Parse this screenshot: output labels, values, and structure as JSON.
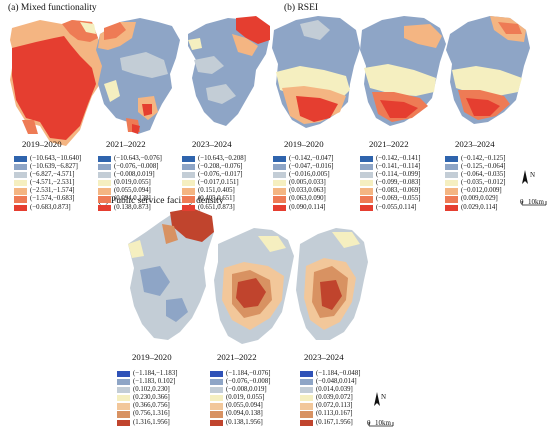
{
  "panel_a": {
    "title": "(a)  Mixed functionality",
    "years": [
      "2019–2020",
      "2021–2022",
      "2023–2024"
    ],
    "legends": [
      {
        "colors": [
          "#2f64ad",
          "#8ea5c6",
          "#c3cdd6",
          "#f5efc0",
          "#f4b582",
          "#ee7b55",
          "#e53e30"
        ],
        "labels": [
          "(−10.643,−10.640]",
          "(−10.639,−6.827]",
          "(−6.827,−4.571]",
          "(−4.571,−2.531]",
          "(−2.531,−1.574]",
          "(−1.574,−0.683]",
          "(−0.683,0.873]"
        ]
      },
      {
        "colors": [
          "#2f64ad",
          "#8ea5c6",
          "#c3cdd6",
          "#f5efc0",
          "#f4b582",
          "#ee7b55",
          "#e53e30"
        ],
        "labels": [
          "(−10.643,−0.076]",
          "(−0.076,−0.008]",
          "(−0.008,0.019]",
          "(0.019,0.055]",
          "(0.055,0.094]",
          "(0.094,0.138]",
          "(0.138,0.873]"
        ]
      },
      {
        "colors": [
          "#2f64ad",
          "#8ea5c6",
          "#c3cdd6",
          "#f5efc0",
          "#f4b582",
          "#ee7b55",
          "#e53e30"
        ],
        "labels": [
          "(−10.643,−0.208]",
          "(−0.208,−0.076]",
          "(−0.076,−0.017]",
          "(−0.017,0.151]",
          "(0.151,0.405]",
          "(0.405,0.651]",
          "(0.651,0.873]"
        ]
      }
    ]
  },
  "panel_b": {
    "title": "(b)   RSEI",
    "years": [
      "2019–2020",
      "2021–2022",
      "2023–2024"
    ],
    "legends": [
      {
        "colors": [
          "#2f64ad",
          "#8ea5c6",
          "#c3cdd6",
          "#f5efc0",
          "#f4b582",
          "#ee7b55",
          "#e53e30"
        ],
        "labels": [
          "(−0.142,−0.047]",
          "(−0.047,−0.016]",
          "(−0.016,0.005]",
          "(0.005,0.033]",
          "(0.033,0.063]",
          "(0.063,0.090]",
          "(0.090,0.114]"
        ]
      },
      {
        "colors": [
          "#2f64ad",
          "#8ea5c6",
          "#c3cdd6",
          "#f5efc0",
          "#f4b582",
          "#ee7b55",
          "#e53e30"
        ],
        "labels": [
          "(−0.142,−0.141]",
          "(−0.141,−0.114]",
          "(−0.114,−0.099]",
          "(−0.099,−0.083]",
          "(−0.083,−0.069]",
          "(−0.069,−0.055]",
          "(−0.055,0.114]"
        ]
      },
      {
        "colors": [
          "#2f64ad",
          "#8ea5c6",
          "#c3cdd6",
          "#f5efc0",
          "#f4b582",
          "#ee7b55",
          "#e53e30"
        ],
        "labels": [
          "(−0.142,−0.125]",
          "(−0.125,−0.064]",
          "(−0.064,−0.035]",
          "(−0.035,−0.012]",
          "(−0.012,0.009]",
          "(0.009,0.029]",
          "(0.029,0.114]"
        ]
      }
    ]
  },
  "panel_c": {
    "title": "(c)   Public service facility density",
    "years": [
      "2019–2020",
      "2021–2022",
      "2023–2024"
    ],
    "legends": [
      {
        "colors": [
          "#2f52b8",
          "#8ea5c6",
          "#c3cdd6",
          "#f5efc0",
          "#f2c79a",
          "#d89262",
          "#c0442d"
        ],
        "labels": [
          "(−1.184,−1.183]",
          "(−1.183, 0.102]",
          "(0.102,0.230]",
          "(0.230,0.366]",
          "(0.366,0.756]",
          "(0.756,1.316]",
          "(1.316,1.956]"
        ]
      },
      {
        "colors": [
          "#2f52b8",
          "#8ea5c6",
          "#c3cdd6",
          "#f5efc0",
          "#f2c79a",
          "#d89262",
          "#c0442d"
        ],
        "labels": [
          "(−1.184,−0.076]",
          "(−0.076,−0.008]",
          "(−0.008,0.019]",
          "(0.019, 0.055]",
          "(0.055,0.094]",
          "(0.094,0.138]",
          "(0.138,1.956]"
        ]
      },
      {
        "colors": [
          "#2f52b8",
          "#8ea5c6",
          "#c3cdd6",
          "#f5efc0",
          "#f2c79a",
          "#d89262",
          "#c0442d"
        ],
        "labels": [
          "(−1.184,−0.048]",
          "(−0.048,0.014]",
          "(0.014,0.039]",
          "(0.039,0.072]",
          "(0.072,0.113]",
          "(0.113,0.167]",
          "(0.167,1.956]"
        ]
      }
    ]
  },
  "compass": {
    "north": "N",
    "zero": "0",
    "scale": "10km"
  }
}
